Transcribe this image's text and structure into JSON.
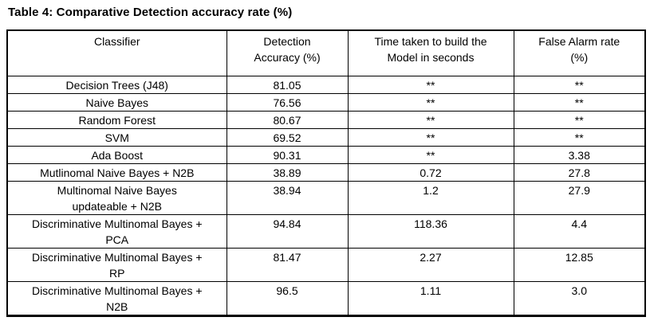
{
  "title": "Table 4: Comparative Detection accuracy rate (%)",
  "table": {
    "headers": {
      "classifier": "Classifier",
      "accuracy": "Detection\nAccuracy (%)",
      "time": "Time taken to build the\nModel in seconds",
      "false_alarm": "False Alarm rate\n(%)"
    },
    "rows": [
      {
        "classifier": "Decision Trees (J48)",
        "accuracy": "81.05",
        "time": "**",
        "false_alarm": "**"
      },
      {
        "classifier": "Naive Bayes",
        "accuracy": "76.56",
        "time": "**",
        "false_alarm": "**"
      },
      {
        "classifier": "Random Forest",
        "accuracy": "80.67",
        "time": "**",
        "false_alarm": "**"
      },
      {
        "classifier": "SVM",
        "accuracy": "69.52",
        "time": "**",
        "false_alarm": "**"
      },
      {
        "classifier": "Ada Boost",
        "accuracy": "90.31",
        "time": "**",
        "false_alarm": "3.38"
      },
      {
        "classifier": "Mutlinomal Naive Bayes + N2B",
        "accuracy": "38.89",
        "time": "0.72",
        "false_alarm": "27.8"
      },
      {
        "classifier": "Multinomal Naive Bayes\nupdateable + N2B",
        "accuracy": "38.94",
        "time": "1.2",
        "false_alarm": "27.9"
      },
      {
        "classifier": "Discriminative Multinomal Bayes +\nPCA",
        "accuracy": "94.84",
        "time": "118.36",
        "false_alarm": "4.4"
      },
      {
        "classifier": "Discriminative Multinomal Bayes +\nRP",
        "accuracy": "81.47",
        "time": "2.27",
        "false_alarm": "12.85"
      },
      {
        "classifier": "Discriminative Multinomal Bayes +\nN2B",
        "accuracy": "96.5",
        "time": "1.11",
        "false_alarm": "3.0"
      }
    ]
  }
}
